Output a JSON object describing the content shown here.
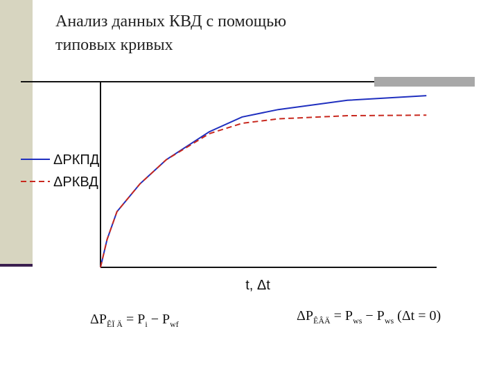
{
  "chart_data": {
    "type": "line",
    "title_lines": [
      "Анализ данных КВД с помощью",
      "типовых кривых"
    ],
    "x_label": "t, Δt",
    "x": [
      0,
      2,
      5,
      12,
      20,
      33,
      43,
      54,
      75,
      99
    ],
    "xlim": [
      0,
      100
    ],
    "ylim": [
      0,
      100
    ],
    "series": [
      {
        "name": "ΔPКПД",
        "color": "#1f2fbf",
        "line_style": "solid",
        "values": [
          0,
          15,
          30,
          45,
          58,
          73,
          81,
          85,
          90,
          92.5
        ]
      },
      {
        "name": "ΔPКВД",
        "color": "#c8281e",
        "line_style": "dashed",
        "values": [
          0,
          15,
          30,
          45,
          58,
          72,
          77.6,
          80,
          81.7,
          82
        ]
      }
    ],
    "formulas": [
      [
        "ΔP",
        "ÊÏ Ä",
        " = P",
        "i",
        " − P",
        "wf"
      ],
      [
        "ΔP",
        "ÊÂÄ",
        " = P",
        "ws",
        " − P",
        "ws",
        " (Δt = 0)"
      ]
    ]
  }
}
